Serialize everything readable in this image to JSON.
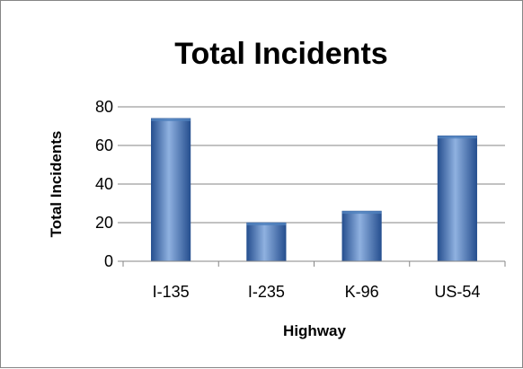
{
  "chart_data": {
    "type": "bar",
    "title": "Total Incidents",
    "xlabel": "Highway",
    "ylabel": "Total Incidents",
    "categories": [
      "I-135",
      "I-235",
      "K-96",
      "US-54"
    ],
    "values": [
      74,
      20,
      26,
      65
    ],
    "ylim": [
      0,
      80
    ],
    "yticks": [
      0,
      20,
      40,
      60,
      80
    ],
    "grid": true,
    "legend": "none",
    "colors": {
      "bar_dark": "#264f8f",
      "bar_mid": "#4f81bd",
      "bar_light": "#8fb1e0",
      "grid": "#868686",
      "border": "#868686"
    }
  }
}
